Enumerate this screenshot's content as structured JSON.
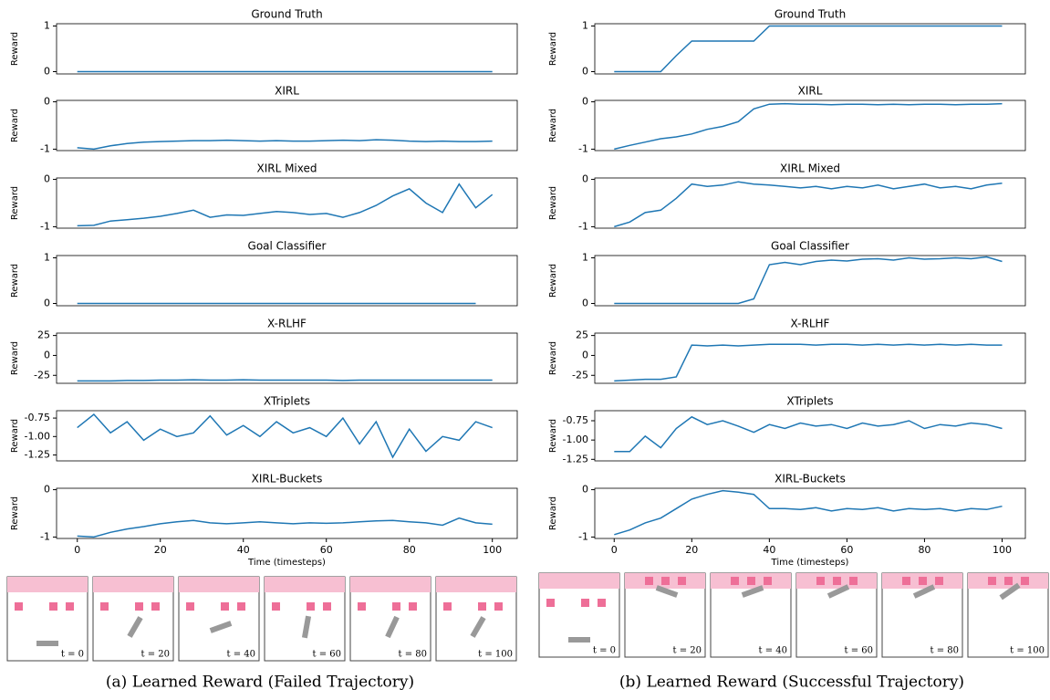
{
  "chart_data": [
    {
      "type": "line",
      "title": "Ground Truth",
      "ylabel": "Reward",
      "x": [
        0,
        4,
        8,
        12,
        16,
        20,
        24,
        28,
        32,
        36,
        40,
        44,
        48,
        52,
        56,
        60,
        64,
        68,
        72,
        76,
        80,
        84,
        88,
        92,
        96,
        100
      ],
      "series": [
        {
          "color": "#1f77b4",
          "values": [
            0,
            0,
            0,
            0,
            0,
            0,
            0,
            0,
            0,
            0,
            0,
            0,
            0,
            0,
            0,
            0,
            0,
            0,
            0,
            0,
            0,
            0,
            0,
            0,
            0,
            0
          ]
        }
      ],
      "xlim": [
        -5,
        106
      ],
      "ylim": [
        -0.05,
        1.05
      ],
      "yticks": [
        0,
        1
      ]
    },
    {
      "type": "line",
      "title": "XIRL",
      "ylabel": "Reward",
      "x": [
        0,
        4,
        8,
        12,
        16,
        20,
        24,
        28,
        32,
        36,
        40,
        44,
        48,
        52,
        56,
        60,
        64,
        68,
        72,
        76,
        80,
        84,
        88,
        92,
        96,
        100
      ],
      "series": [
        {
          "color": "#1f77b4",
          "values": [
            -0.97,
            -1.0,
            -0.93,
            -0.88,
            -0.85,
            -0.84,
            -0.83,
            -0.82,
            -0.82,
            -0.81,
            -0.82,
            -0.83,
            -0.82,
            -0.83,
            -0.83,
            -0.82,
            -0.81,
            -0.82,
            -0.8,
            -0.81,
            -0.83,
            -0.84,
            -0.83,
            -0.84,
            -0.84,
            -0.83
          ]
        }
      ],
      "xlim": [
        -5,
        106
      ],
      "ylim": [
        -1.03,
        0.03
      ],
      "yticks": [
        -1,
        0
      ]
    },
    {
      "type": "line",
      "title": "XIRL Mixed",
      "ylabel": "Reward",
      "x": [
        0,
        4,
        8,
        12,
        16,
        20,
        24,
        28,
        32,
        36,
        40,
        44,
        48,
        52,
        56,
        60,
        64,
        68,
        72,
        76,
        80,
        84,
        88,
        92,
        96,
        100
      ],
      "series": [
        {
          "color": "#1f77b4",
          "values": [
            -0.98,
            -0.97,
            -0.88,
            -0.85,
            -0.82,
            -0.78,
            -0.72,
            -0.65,
            -0.8,
            -0.75,
            -0.76,
            -0.72,
            -0.68,
            -0.7,
            -0.74,
            -0.72,
            -0.8,
            -0.7,
            -0.55,
            -0.35,
            -0.2,
            -0.5,
            -0.7,
            -0.1,
            -0.6,
            -0.32
          ]
        }
      ],
      "xlim": [
        -5,
        106
      ],
      "ylim": [
        -1.03,
        0.03
      ],
      "yticks": [
        -1,
        0
      ]
    },
    {
      "type": "line",
      "title": "Goal Classifier",
      "ylabel": "Reward",
      "x": [
        0,
        4,
        8,
        12,
        16,
        20,
        24,
        28,
        32,
        36,
        40,
        44,
        48,
        52,
        56,
        60,
        64,
        68,
        72,
        76,
        80,
        84,
        88,
        92,
        96,
        100
      ],
      "series": [
        {
          "color": "#1f77b4",
          "values": [
            0,
            0,
            0,
            0,
            0,
            0,
            0,
            0,
            0,
            0,
            0,
            0,
            0,
            0,
            0,
            0,
            0,
            0,
            0,
            0,
            0,
            0,
            0,
            0,
            0,
            null
          ]
        }
      ],
      "xlim": [
        -5,
        106
      ],
      "ylim": [
        -0.05,
        1.05
      ],
      "yticks": [
        0,
        1
      ]
    },
    {
      "type": "line",
      "title": "X-RLHF",
      "ylabel": "Reward",
      "x": [
        0,
        4,
        8,
        12,
        16,
        20,
        24,
        28,
        32,
        36,
        40,
        44,
        48,
        52,
        56,
        60,
        64,
        68,
        72,
        76,
        80,
        84,
        88,
        92,
        96,
        100
      ],
      "series": [
        {
          "color": "#1f77b4",
          "values": [
            -32,
            -32,
            -32,
            -31.5,
            -31.5,
            -31,
            -31,
            -30.5,
            -31,
            -31,
            -30.5,
            -31,
            -31,
            -31,
            -31,
            -31,
            -31.5,
            -31,
            -31,
            -31,
            -31,
            -31,
            -31,
            -31,
            -31,
            -31
          ]
        }
      ],
      "xlim": [
        -5,
        106
      ],
      "ylim": [
        -35,
        28
      ],
      "yticks": [
        -25,
        0,
        25
      ]
    },
    {
      "type": "line",
      "title": "XTriplets",
      "ylabel": "Reward",
      "x": [
        0,
        4,
        8,
        12,
        16,
        20,
        24,
        28,
        32,
        36,
        40,
        44,
        48,
        52,
        56,
        60,
        64,
        68,
        72,
        76,
        80,
        84,
        88,
        92,
        96,
        100
      ],
      "series": [
        {
          "color": "#1f77b4",
          "values": [
            -0.88,
            -0.7,
            -0.95,
            -0.8,
            -1.05,
            -0.9,
            -1.0,
            -0.95,
            -0.72,
            -0.98,
            -0.85,
            -1.0,
            -0.8,
            -0.95,
            -0.88,
            -1.0,
            -0.75,
            -1.1,
            -0.8,
            -1.28,
            -0.9,
            -1.2,
            -1.0,
            -1.05,
            -0.8,
            -0.88
          ]
        }
      ],
      "xlim": [
        -5,
        106
      ],
      "ylim": [
        -1.33,
        -0.65
      ],
      "yticks": [
        -1.25,
        {
          "value": -1,
          "label": "-1.00"
        },
        -0.75
      ]
    },
    {
      "type": "line",
      "title": "XIRL-Buckets",
      "ylabel": "Reward",
      "xlabel": "Time (timesteps)",
      "x": [
        0,
        4,
        8,
        12,
        16,
        20,
        24,
        28,
        32,
        36,
        40,
        44,
        48,
        52,
        56,
        60,
        64,
        68,
        72,
        76,
        80,
        84,
        88,
        92,
        96,
        100
      ],
      "series": [
        {
          "color": "#1f77b4",
          "values": [
            -0.98,
            -1.0,
            -0.9,
            -0.83,
            -0.78,
            -0.72,
            -0.68,
            -0.65,
            -0.7,
            -0.72,
            -0.7,
            -0.68,
            -0.7,
            -0.72,
            -0.7,
            -0.71,
            -0.7,
            -0.68,
            -0.66,
            -0.65,
            -0.68,
            -0.7,
            -0.75,
            -0.6,
            -0.7,
            -0.73
          ]
        }
      ],
      "xlim": [
        -5,
        106
      ],
      "ylim": [
        -1.03,
        0.03
      ],
      "yticks": [
        -1,
        0
      ],
      "xticks": [
        0,
        20,
        40,
        60,
        80,
        100
      ]
    },
    {
      "type": "line",
      "title": "Ground Truth",
      "ylabel": "Reward",
      "x": [
        0,
        4,
        8,
        12,
        16,
        20,
        24,
        28,
        32,
        36,
        40,
        44,
        48,
        52,
        56,
        60,
        64,
        68,
        72,
        76,
        80,
        84,
        88,
        92,
        96,
        100
      ],
      "series": [
        {
          "color": "#1f77b4",
          "values": [
            0,
            0,
            0,
            0,
            0.35,
            0.67,
            0.67,
            0.67,
            0.67,
            0.67,
            1,
            1,
            1,
            1,
            1,
            1,
            1,
            1,
            1,
            1,
            1,
            1,
            1,
            1,
            1,
            1
          ]
        }
      ],
      "xlim": [
        -5,
        106
      ],
      "ylim": [
        -0.05,
        1.05
      ],
      "yticks": [
        0,
        1
      ]
    },
    {
      "type": "line",
      "title": "XIRL",
      "ylabel": "Reward",
      "x": [
        0,
        4,
        8,
        12,
        16,
        20,
        24,
        28,
        32,
        36,
        40,
        44,
        48,
        52,
        56,
        60,
        64,
        68,
        72,
        76,
        80,
        84,
        88,
        92,
        96,
        100
      ],
      "series": [
        {
          "color": "#1f77b4",
          "values": [
            -1.0,
            -0.92,
            -0.85,
            -0.78,
            -0.74,
            -0.68,
            -0.58,
            -0.52,
            -0.42,
            -0.15,
            -0.05,
            -0.04,
            -0.05,
            -0.05,
            -0.06,
            -0.05,
            -0.05,
            -0.06,
            -0.05,
            -0.06,
            -0.05,
            -0.05,
            -0.06,
            -0.05,
            -0.05,
            -0.04
          ]
        }
      ],
      "xlim": [
        -5,
        106
      ],
      "ylim": [
        -1.03,
        0.03
      ],
      "yticks": [
        -1,
        0
      ]
    },
    {
      "type": "line",
      "title": "XIRL Mixed",
      "ylabel": "Reward",
      "x": [
        0,
        4,
        8,
        12,
        16,
        20,
        24,
        28,
        32,
        36,
        40,
        44,
        48,
        52,
        56,
        60,
        64,
        68,
        72,
        76,
        80,
        84,
        88,
        92,
        96,
        100
      ],
      "series": [
        {
          "color": "#1f77b4",
          "values": [
            -1.0,
            -0.9,
            -0.7,
            -0.65,
            -0.4,
            -0.1,
            -0.15,
            -0.12,
            -0.05,
            -0.1,
            -0.12,
            -0.15,
            -0.18,
            -0.15,
            -0.2,
            -0.15,
            -0.18,
            -0.12,
            -0.2,
            -0.15,
            -0.1,
            -0.18,
            -0.15,
            -0.2,
            -0.12,
            -0.08
          ]
        }
      ],
      "xlim": [
        -5,
        106
      ],
      "ylim": [
        -1.03,
        0.03
      ],
      "yticks": [
        -1,
        0
      ]
    },
    {
      "type": "line",
      "title": "Goal Classifier",
      "ylabel": "Reward",
      "x": [
        0,
        4,
        8,
        12,
        16,
        20,
        24,
        28,
        32,
        36,
        40,
        44,
        48,
        52,
        56,
        60,
        64,
        68,
        72,
        76,
        80,
        84,
        88,
        92,
        96,
        100
      ],
      "series": [
        {
          "color": "#1f77b4",
          "values": [
            0,
            0,
            0,
            0,
            0,
            0,
            0,
            0,
            0,
            0.1,
            0.85,
            0.9,
            0.85,
            0.92,
            0.95,
            0.93,
            0.97,
            0.98,
            0.95,
            1.0,
            0.97,
            0.98,
            1.0,
            0.98,
            1.02,
            0.92
          ]
        }
      ],
      "xlim": [
        -5,
        106
      ],
      "ylim": [
        -0.05,
        1.05
      ],
      "yticks": [
        0,
        1
      ]
    },
    {
      "type": "line",
      "title": "X-RLHF",
      "ylabel": "Reward",
      "x": [
        0,
        4,
        8,
        12,
        16,
        20,
        24,
        28,
        32,
        36,
        40,
        44,
        48,
        52,
        56,
        60,
        64,
        68,
        72,
        76,
        80,
        84,
        88,
        92,
        96,
        100
      ],
      "series": [
        {
          "color": "#1f77b4",
          "values": [
            -32,
            -31,
            -30,
            -30,
            -27,
            13,
            12,
            13,
            12,
            13,
            14,
            14,
            14,
            13,
            14,
            14,
            13,
            14,
            13,
            14,
            13,
            14,
            13,
            14,
            13,
            13
          ]
        }
      ],
      "xlim": [
        -5,
        106
      ],
      "ylim": [
        -35,
        28
      ],
      "yticks": [
        -25,
        0,
        25
      ]
    },
    {
      "type": "line",
      "title": "XTriplets",
      "ylabel": "Reward",
      "x": [
        0,
        4,
        8,
        12,
        16,
        20,
        24,
        28,
        32,
        36,
        40,
        44,
        48,
        52,
        56,
        60,
        64,
        68,
        72,
        76,
        80,
        84,
        88,
        92,
        96,
        100
      ],
      "series": [
        {
          "color": "#1f77b4",
          "values": [
            -1.15,
            -1.15,
            -0.95,
            -1.1,
            -0.85,
            -0.7,
            -0.8,
            -0.75,
            -0.82,
            -0.9,
            -0.8,
            -0.85,
            -0.78,
            -0.82,
            -0.8,
            -0.85,
            -0.78,
            -0.82,
            -0.8,
            -0.75,
            -0.85,
            -0.8,
            -0.82,
            -0.78,
            -0.8,
            -0.85
          ]
        }
      ],
      "xlim": [
        -5,
        106
      ],
      "ylim": [
        -1.27,
        -0.62
      ],
      "yticks": [
        -1.25,
        {
          "value": -1,
          "label": "-1.00"
        },
        -0.75
      ]
    },
    {
      "type": "line",
      "title": "XIRL-Buckets",
      "ylabel": "Reward",
      "xlabel": "Time (timesteps)",
      "x": [
        0,
        4,
        8,
        12,
        16,
        20,
        24,
        28,
        32,
        36,
        40,
        44,
        48,
        52,
        56,
        60,
        64,
        68,
        72,
        76,
        80,
        84,
        88,
        92,
        96,
        100
      ],
      "series": [
        {
          "color": "#1f77b4",
          "values": [
            -0.95,
            -0.85,
            -0.7,
            -0.6,
            -0.4,
            -0.2,
            -0.1,
            -0.02,
            -0.05,
            -0.1,
            -0.4,
            -0.4,
            -0.42,
            -0.38,
            -0.45,
            -0.4,
            -0.42,
            -0.38,
            -0.45,
            -0.4,
            -0.42,
            -0.4,
            -0.45,
            -0.4,
            -0.42,
            -0.35
          ]
        }
      ],
      "xlim": [
        -5,
        106
      ],
      "ylim": [
        -1.03,
        0.03
      ],
      "yticks": [
        -1,
        0
      ],
      "xticks": [
        0,
        20,
        40,
        60,
        80,
        100
      ]
    }
  ],
  "frames": {
    "a": [
      "t = 0",
      "t = 20",
      "t = 40",
      "t = 60",
      "t = 80",
      "t = 100"
    ],
    "b": [
      "t = 0",
      "t = 20",
      "t = 40",
      "t = 60",
      "t = 80",
      "t = 100"
    ]
  },
  "captions": [
    "(a) Learned Reward (Failed Trajectory)",
    "(b) Learned Reward (Successful Trajectory)"
  ]
}
